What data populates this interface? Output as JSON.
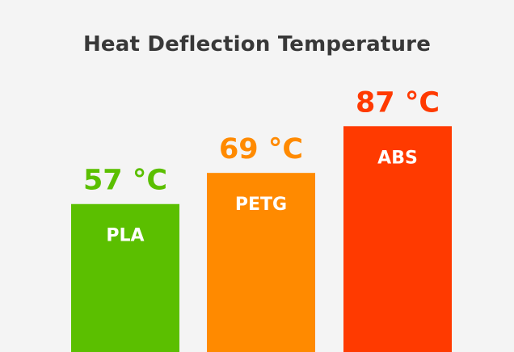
{
  "chart_data": {
    "type": "bar",
    "title": "Heat Deflection Temperature",
    "categories": [
      "PLA",
      "PETG",
      "ABS"
    ],
    "values": [
      57,
      69,
      87
    ],
    "value_labels": [
      "57 °C",
      "69 °C",
      "87 °C"
    ],
    "colors": [
      "#5bbf00",
      "#ff8a00",
      "#ff3a00"
    ],
    "xlabel": "",
    "ylabel": "",
    "grid": false
  }
}
